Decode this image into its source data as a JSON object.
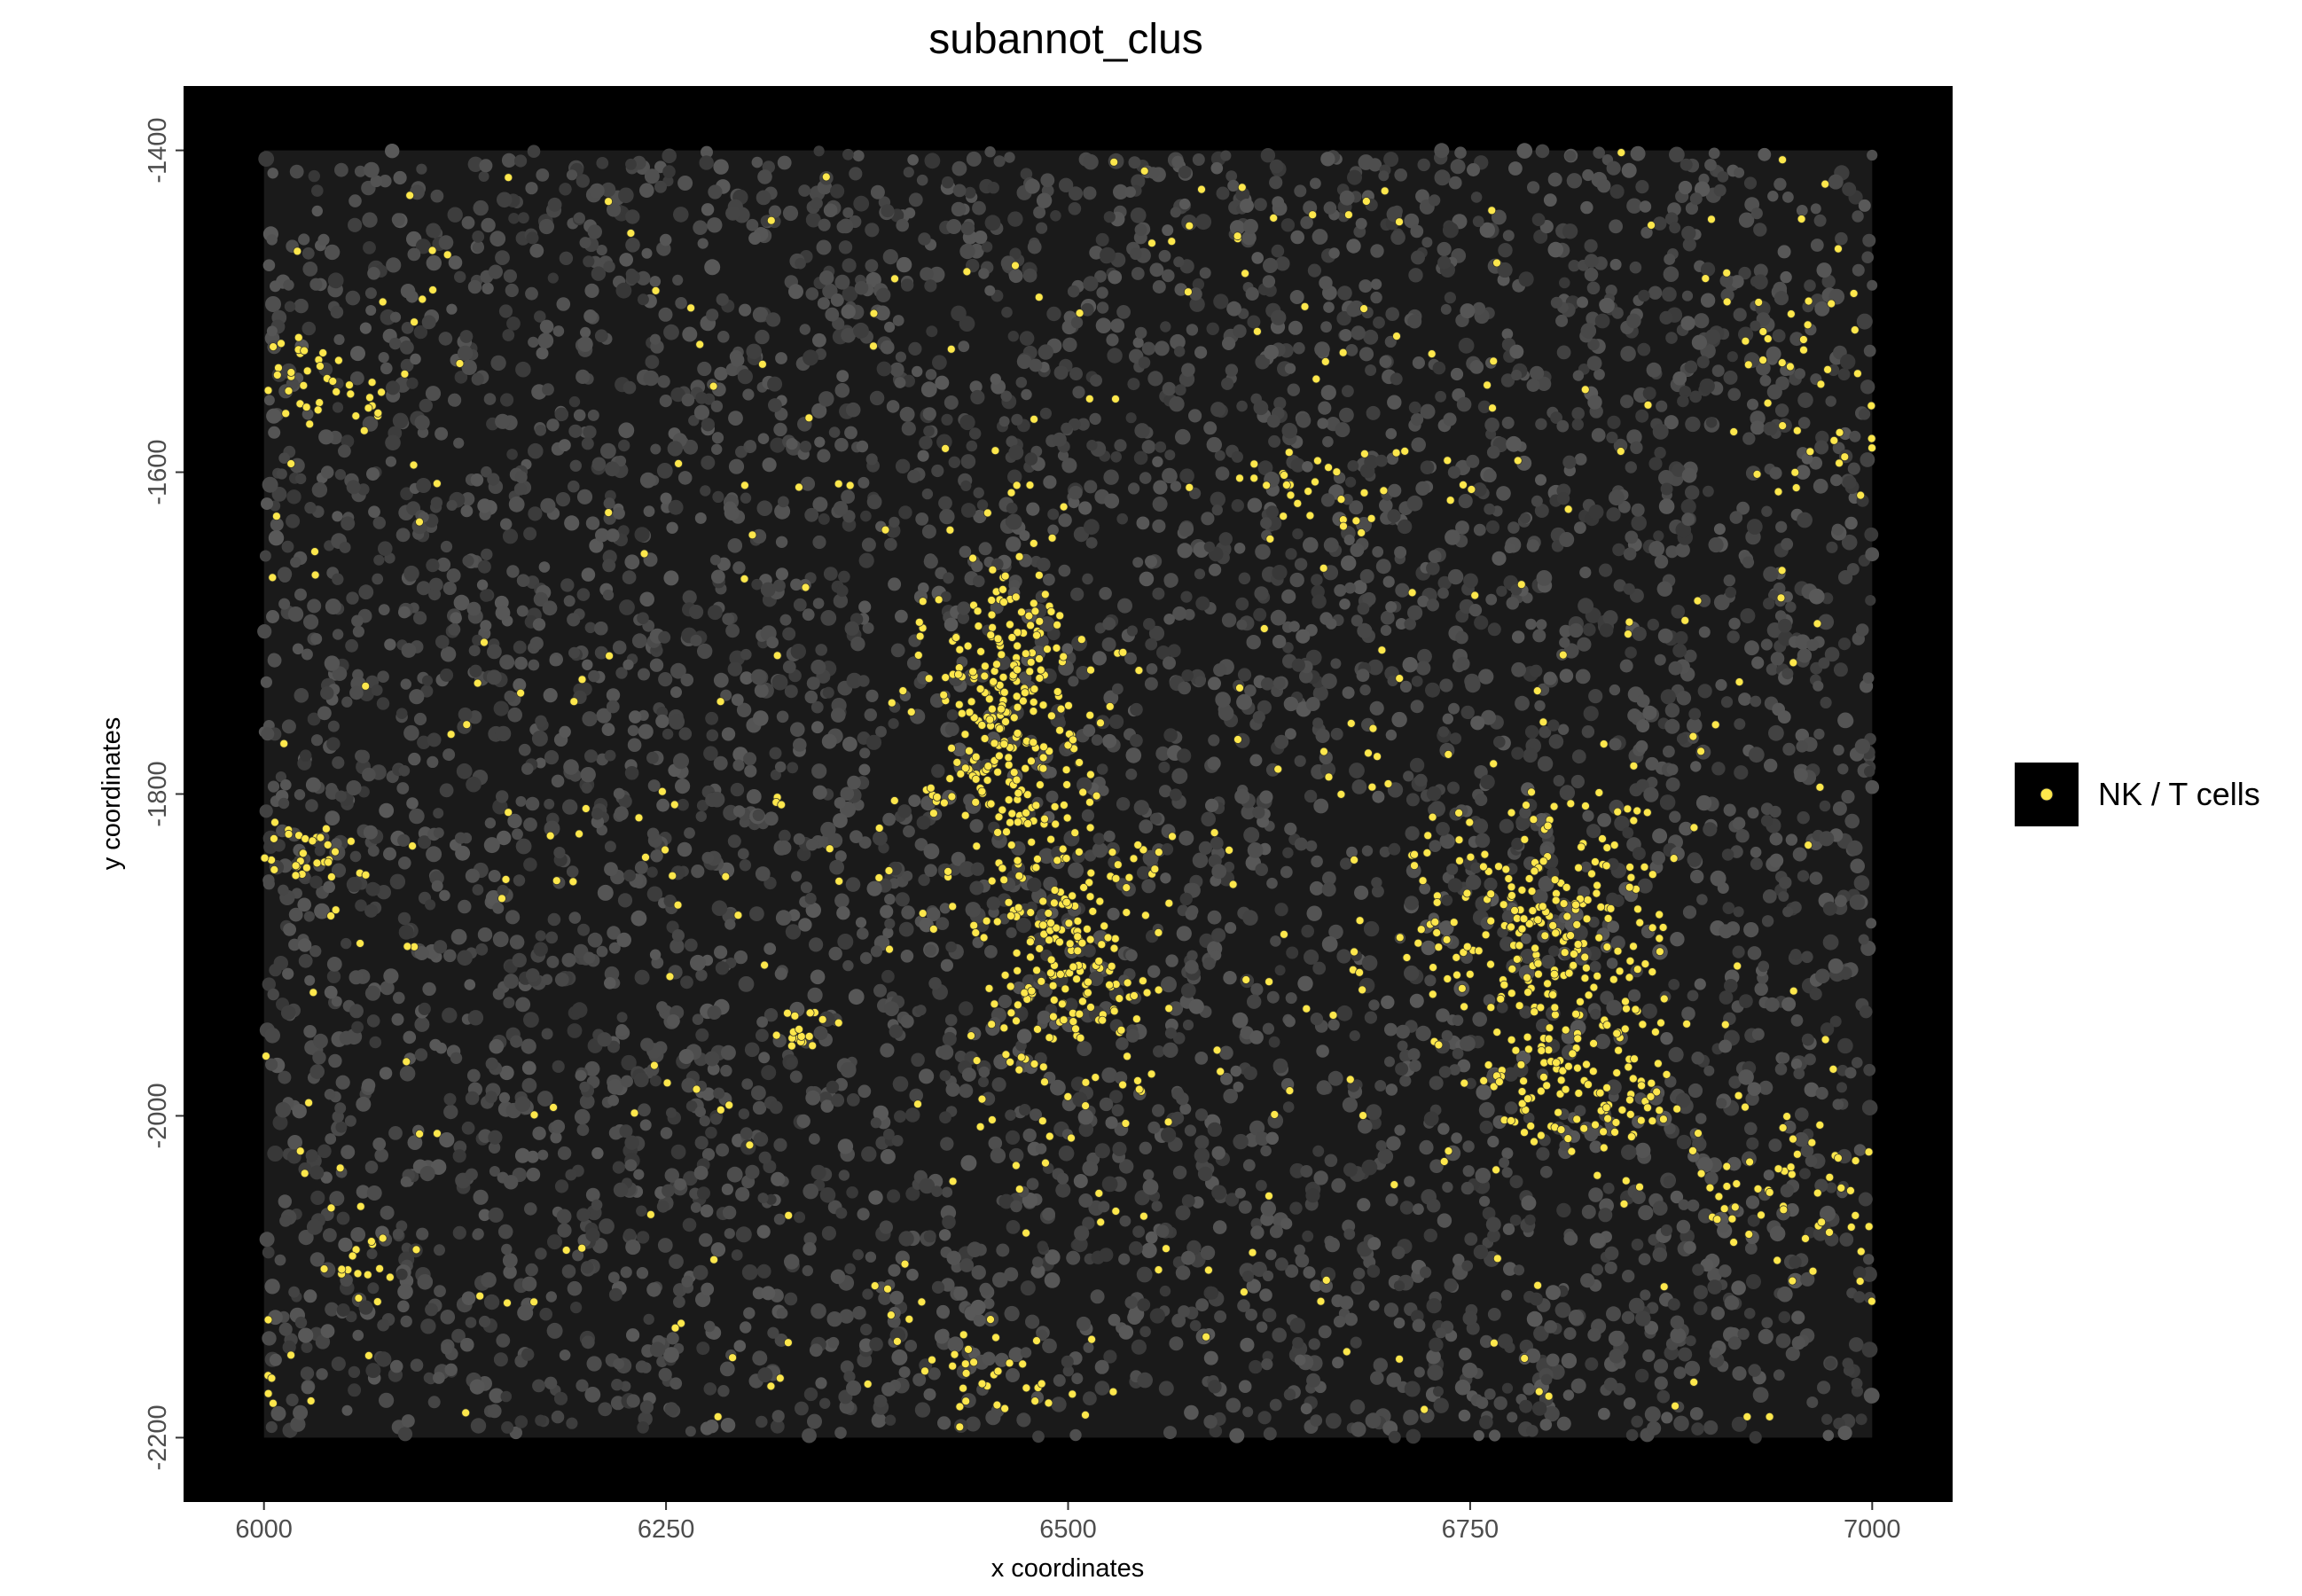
{
  "chart_data": {
    "type": "scatter",
    "title": "subannot_clus",
    "xlabel": "x coordinates",
    "ylabel": "y coordinates",
    "xlim": [
      5950,
      7050
    ],
    "ylim": [
      -2240,
      -1360
    ],
    "x_ticks": [
      6000,
      6250,
      6500,
      6750,
      7000
    ],
    "y_ticks": [
      -1400,
      -1600,
      -1800,
      -2000,
      -2200
    ],
    "x_tick_labels": [
      "6000",
      "6250",
      "6500",
      "6750",
      "7000"
    ],
    "y_tick_labels": [
      "-1400",
      "-1600",
      "-1800",
      "-2000",
      "-2200"
    ],
    "image_extent": {
      "x": [
        6000,
        7000
      ],
      "y": [
        -2200,
        -1400
      ]
    },
    "panel_background": "#000000",
    "grid": false,
    "legend_position": "right",
    "series": [
      {
        "name": "NK / T cells",
        "color": "#fde74c",
        "clusters": [
          {
            "x": 6460,
            "y": -1745,
            "sx": 25,
            "sy": 45,
            "n": 260
          },
          {
            "x": 6500,
            "y": -1905,
            "sx": 30,
            "sy": 45,
            "n": 190
          },
          {
            "x": 6795,
            "y": -1890,
            "sx": 40,
            "sy": 45,
            "n": 240
          },
          {
            "x": 6830,
            "y": -1985,
            "sx": 30,
            "sy": 25,
            "n": 90
          },
          {
            "x": 6035,
            "y": -1545,
            "sx": 25,
            "sy": 18,
            "n": 45
          },
          {
            "x": 6025,
            "y": -1835,
            "sx": 18,
            "sy": 10,
            "n": 30
          },
          {
            "x": 6335,
            "y": -1950,
            "sx": 8,
            "sy": 10,
            "n": 15
          },
          {
            "x": 6060,
            "y": -2090,
            "sx": 12,
            "sy": 12,
            "n": 15
          },
          {
            "x": 6650,
            "y": -1615,
            "sx": 25,
            "sy": 15,
            "n": 25
          },
          {
            "x": 6450,
            "y": -2160,
            "sx": 25,
            "sy": 20,
            "n": 30
          },
          {
            "x": 6970,
            "y": -1550,
            "sx": 30,
            "sy": 50,
            "n": 40
          },
          {
            "x": 6950,
            "y": -2050,
            "sx": 40,
            "sy": 30,
            "n": 60
          }
        ],
        "background_points": 360
      }
    ],
    "tissue_color": "#4a4a4a"
  }
}
